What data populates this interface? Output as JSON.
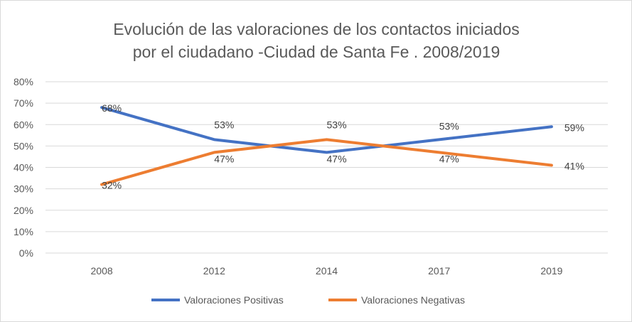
{
  "chart_data": {
    "type": "line",
    "title_lines": [
      "Evolución de las valoraciones de los contactos iniciados",
      "por el ciudadano -Ciudad de Santa Fe . 2008/2019"
    ],
    "categories": [
      "2008",
      "2012",
      "2014",
      "2017",
      "2019"
    ],
    "ylim": [
      0,
      80
    ],
    "yticks": [
      "0%",
      "10%",
      "20%",
      "30%",
      "40%",
      "50%",
      "60%",
      "70%",
      "80%"
    ],
    "ytick_values": [
      0,
      10,
      20,
      30,
      40,
      50,
      60,
      70,
      80
    ],
    "grid": true,
    "legend_position": "bottom",
    "series": [
      {
        "name": "Valoraciones Positivas",
        "color": "#4472C4",
        "values": [
          68,
          53,
          47,
          53,
          59
        ],
        "labels": [
          "68%",
          "53%",
          "47%",
          "53%",
          "59%"
        ]
      },
      {
        "name": "Valoraciones Negativas",
        "color": "#ED7D31",
        "values": [
          32,
          47,
          53,
          47,
          41
        ],
        "labels": [
          "32%",
          "47%",
          "53%",
          "47%",
          "41%"
        ]
      }
    ]
  }
}
